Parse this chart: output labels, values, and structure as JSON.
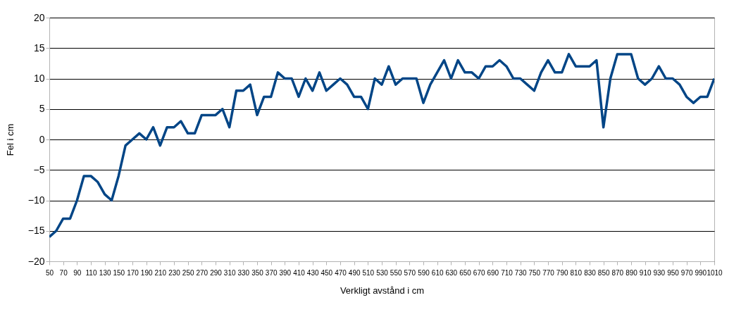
{
  "chart_data": {
    "type": "line",
    "xlabel": "Verkligt avstånd i cm",
    "ylabel": "Fel i cm",
    "x": [
      50,
      60,
      70,
      80,
      90,
      100,
      110,
      120,
      130,
      140,
      150,
      160,
      170,
      180,
      190,
      200,
      210,
      220,
      230,
      240,
      250,
      260,
      270,
      280,
      290,
      300,
      310,
      320,
      330,
      340,
      350,
      360,
      370,
      380,
      390,
      400,
      410,
      420,
      430,
      440,
      450,
      460,
      470,
      480,
      490,
      500,
      510,
      520,
      530,
      540,
      550,
      560,
      570,
      580,
      590,
      600,
      610,
      620,
      630,
      640,
      650,
      660,
      670,
      680,
      690,
      700,
      710,
      720,
      730,
      740,
      750,
      760,
      770,
      780,
      790,
      800,
      810,
      820,
      830,
      840,
      850,
      860,
      870,
      880,
      890,
      900,
      910,
      920,
      930,
      940,
      950,
      960,
      970,
      980,
      990,
      1000,
      1010
    ],
    "series": [
      {
        "color": "#004586",
        "values": [
          -16,
          -15,
          -13,
          -13,
          -10,
          -6,
          -6,
          -7,
          -9,
          -10,
          -6,
          -1,
          0,
          1,
          0,
          2,
          -1,
          2,
          2,
          3,
          1,
          1,
          4,
          4,
          4,
          5,
          2,
          8,
          8,
          9,
          4,
          7,
          7,
          11,
          10,
          10,
          7,
          10,
          8,
          11,
          8,
          9,
          10,
          9,
          7,
          7,
          5,
          10,
          9,
          12,
          9,
          10,
          10,
          10,
          6,
          9,
          11,
          13,
          10,
          13,
          11,
          11,
          10,
          12,
          12,
          13,
          12,
          10,
          10,
          9,
          8,
          11,
          13,
          11,
          11,
          14,
          12,
          12,
          12,
          13,
          2,
          10,
          14,
          14,
          14,
          10,
          9,
          10,
          12,
          10,
          10,
          9,
          7,
          6,
          7,
          7,
          10
        ]
      }
    ],
    "xlim": [
      50,
      1010
    ],
    "xticks": [
      50,
      70,
      90,
      110,
      130,
      150,
      170,
      190,
      210,
      230,
      250,
      270,
      290,
      310,
      330,
      350,
      370,
      390,
      410,
      430,
      450,
      470,
      490,
      510,
      530,
      550,
      570,
      590,
      610,
      630,
      650,
      670,
      690,
      710,
      730,
      750,
      770,
      790,
      810,
      830,
      850,
      870,
      890,
      910,
      930,
      950,
      970,
      990,
      1010
    ],
    "ylim": [
      -20,
      20
    ],
    "yticks": [
      -20,
      -15,
      -10,
      -5,
      0,
      5,
      10,
      15,
      20
    ],
    "grid": "y",
    "marker": "none",
    "line_style": "solid"
  }
}
